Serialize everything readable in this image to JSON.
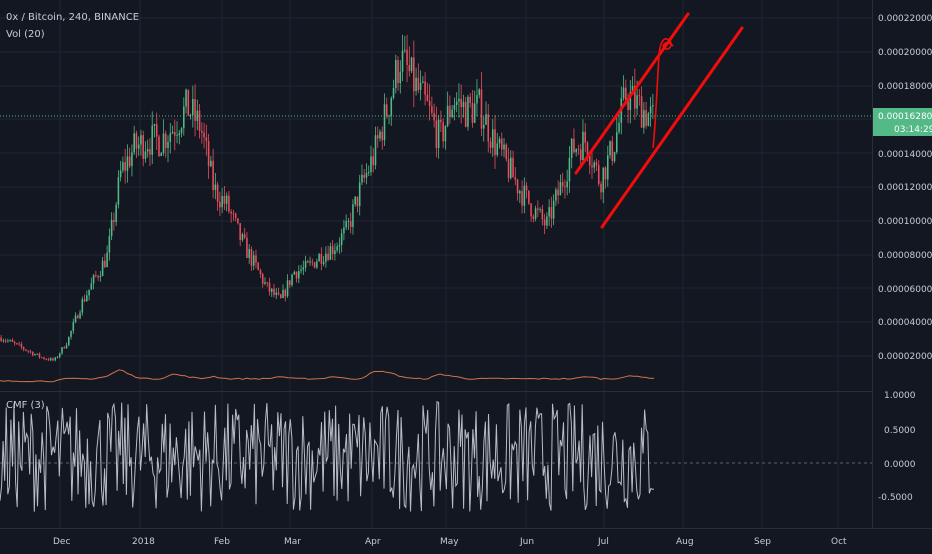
{
  "header": {
    "symbol_line": "0x / Bitcoin, 240, BINANCE",
    "volume_label": "Vol (20)",
    "cmf_label": "CMF (3)"
  },
  "price_axis": {
    "ticks": [
      "0.00022000",
      "0.00020000",
      "0.00018000",
      "0.00014000",
      "0.00012000",
      "0.00010000",
      "0.00008000",
      "0.00006000",
      "0.00004000",
      "0.00002000"
    ],
    "current_price": "0.00016280",
    "countdown": "03:14:29"
  },
  "cmf_axis": {
    "ticks": [
      "1.0000",
      "0.5000",
      "0.0000",
      "-0.5000"
    ]
  },
  "time_axis": {
    "labels": [
      "Dec",
      "2018",
      "Feb",
      "Mar",
      "Apr",
      "May",
      "Jun",
      "Jul",
      "Aug",
      "Sep",
      "Oct"
    ]
  },
  "colors": {
    "background": "#131722",
    "grid": "#1f2433",
    "up": "#53b987",
    "down": "#eb4d5c",
    "volume_line": "#d0744a",
    "cmf_line": "#b8bcc6",
    "drawing": "#f20d0d",
    "price_tag": "#53b987"
  },
  "chart_data": {
    "type": "line",
    "title": "0x / Bitcoin, 240, BINANCE",
    "x_axis_labels": [
      "Dec",
      "2018",
      "Feb",
      "Mar",
      "Apr",
      "May",
      "Jun",
      "Jul",
      "Aug",
      "Sep",
      "Oct"
    ],
    "ylim": [
      0,
      0.000235
    ],
    "series": [
      {
        "name": "0x / Bitcoin",
        "x": [
          "Nov 10",
          "Nov 20",
          "Dec 1",
          "Dec 10",
          "Dec 20",
          "Dec 25",
          "Jan 1",
          "Jan 3",
          "Jan 6",
          "Jan 8",
          "Jan 12",
          "Jan 16",
          "Jan 20",
          "Jan 23",
          "Jan 27",
          "Jan 30",
          "Feb 3",
          "Feb 10",
          "Feb 17",
          "Feb 24",
          "Mar 4",
          "Mar 11",
          "Mar 18",
          "Mar 25",
          "Apr 1",
          "Apr 8",
          "Apr 15",
          "Apr 22",
          "Apr 27",
          "May 1",
          "May 3",
          "May 7",
          "May 12",
          "May 18",
          "May 24",
          "May 28",
          "Jun 1",
          "Jun 6",
          "Jun 10",
          "Jun 15",
          "Jun 20",
          "Jun 25",
          "Jun 30",
          "Jul 3",
          "Jul 7",
          "Jul 10",
          "Jul 13",
          "Jul 17",
          "Jul 20",
          "Jul 24"
        ],
        "values": [
          3e-05,
          2.6e-05,
          2.2e-05,
          1.8e-05,
          1.6e-05,
          2.8e-05,
          5e-05,
          6.5e-05,
          8e-05,
          0.00013,
          0.000145,
          0.00015,
          0.00015,
          0.000158,
          0.00017,
          0.000158,
          0.00012,
          0.00011,
          9e-05,
          7.5e-05,
          6e-05,
          5.2e-05,
          7e-05,
          7.2e-05,
          8e-05,
          8.5e-05,
          9.5e-05,
          0.00012,
          0.00014,
          0.000168,
          0.0002,
          0.000185,
          0.00017,
          0.00015,
          0.000175,
          0.000168,
          0.00017,
          0.00015,
          0.000135,
          0.00012,
          0.000108,
          9.8e-05,
          0.00012,
          0.000145,
          0.00015,
          0.000125,
          0.000145,
          0.000178,
          0.00017,
          0.000163
        ]
      }
    ],
    "volume_series": {
      "name": "Vol (20)",
      "values": [
        1,
        1,
        1,
        1,
        1,
        2,
        2,
        2,
        3,
        6,
        3,
        2,
        2,
        4,
        3,
        2,
        3,
        2,
        2,
        2,
        2,
        3,
        2,
        2,
        2,
        3,
        2,
        2,
        5,
        5,
        3,
        2,
        2,
        4,
        3,
        2,
        2,
        2,
        2,
        2,
        2,
        2,
        2,
        2,
        3,
        2,
        2,
        3,
        3,
        2
      ]
    },
    "cmf_series": {
      "name": "CMF (3)",
      "ylim": [
        -0.9,
        1.05
      ],
      "range": [
        -0.7,
        0.95
      ]
    },
    "drawings": [
      {
        "type": "trend-line",
        "from": [
          "Jun 20",
          0.000127
        ],
        "to": [
          "Jul 30",
          0.000222
        ]
      },
      {
        "type": "trend-line",
        "from": [
          "Jun 30",
          9.6e-05
        ],
        "to": [
          "Sep 1",
          0.000213
        ]
      }
    ]
  }
}
